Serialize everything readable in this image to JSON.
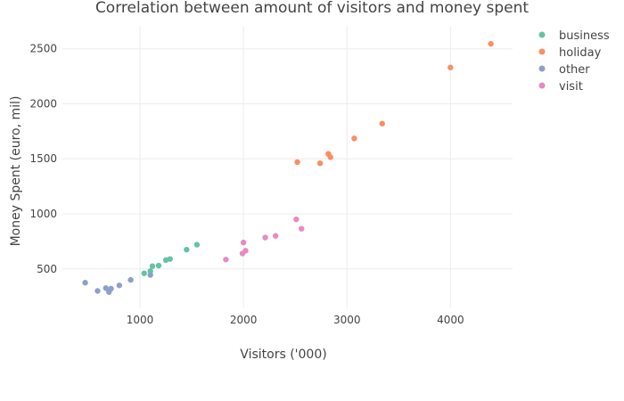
{
  "chart_data": {
    "type": "scatter",
    "title": "Correlation between amount of visitors and money spent",
    "xlabel": "Visitors ('000)",
    "ylabel": "Money Spent (euro, mil)",
    "xlim": [
      250,
      4600
    ],
    "ylim": [
      150,
      2700
    ],
    "xticks": [
      1000,
      2000,
      3000,
      4000
    ],
    "yticks": [
      500,
      1000,
      1500,
      2000,
      2500
    ],
    "grid": true,
    "legend_position": "top-right",
    "series": [
      {
        "name": "business",
        "color": "#66c2a5",
        "points": [
          [
            1040,
            460
          ],
          [
            1100,
            480
          ],
          [
            1120,
            525
          ],
          [
            1180,
            530
          ],
          [
            1250,
            580
          ],
          [
            1290,
            590
          ],
          [
            1450,
            675
          ],
          [
            1550,
            720
          ]
        ]
      },
      {
        "name": "holiday",
        "color": "#fc8d62",
        "points": [
          [
            2520,
            1470
          ],
          [
            2740,
            1460
          ],
          [
            2820,
            1545
          ],
          [
            2840,
            1515
          ],
          [
            3070,
            1685
          ],
          [
            3340,
            1820
          ],
          [
            4000,
            2330
          ],
          [
            4390,
            2545
          ]
        ]
      },
      {
        "name": "other",
        "color": "#8da0cb",
        "points": [
          [
            470,
            375
          ],
          [
            590,
            300
          ],
          [
            670,
            325
          ],
          [
            700,
            290
          ],
          [
            720,
            320
          ],
          [
            800,
            350
          ],
          [
            910,
            400
          ],
          [
            1100,
            445
          ]
        ]
      },
      {
        "name": "visit",
        "color": "#e78ac3",
        "points": [
          [
            1830,
            585
          ],
          [
            1990,
            640
          ],
          [
            2000,
            740
          ],
          [
            2020,
            665
          ],
          [
            2210,
            785
          ],
          [
            2310,
            800
          ],
          [
            2510,
            950
          ],
          [
            2560,
            865
          ]
        ]
      }
    ]
  }
}
